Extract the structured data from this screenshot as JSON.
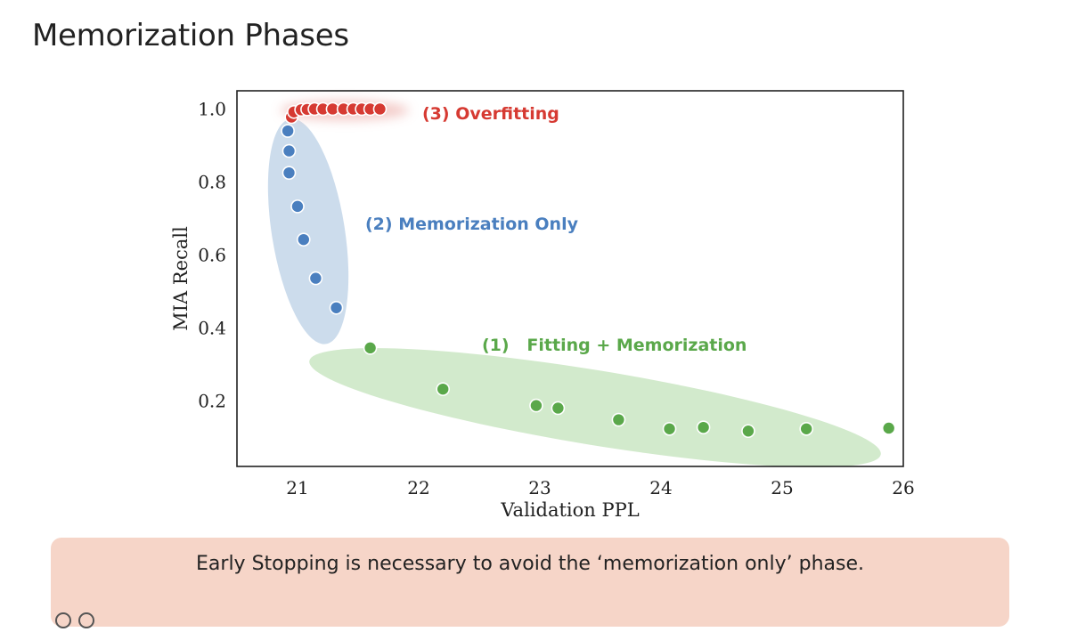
{
  "page": {
    "title": "Memorization Phases"
  },
  "note": {
    "text": "Early Stopping is necessary to avoid the ‘memorization only’ phase."
  },
  "chart_data": {
    "type": "scatter",
    "xlabel": "Validation PPL",
    "ylabel": "MIA Recall",
    "xlim": [
      20.5,
      26
    ],
    "ylim": [
      0.02,
      1.05
    ],
    "xticks": [
      21,
      22,
      23,
      24,
      25,
      26
    ],
    "yticks": [
      0.2,
      0.4,
      0.6,
      0.8,
      1.0
    ],
    "ytick_labels": [
      "0.2",
      "0.4",
      "0.6",
      "0.8",
      "1.0"
    ],
    "grid": false,
    "series": [
      {
        "name": "(1)   Fitting + Memorization",
        "color": "#5aa84a",
        "halo_color": "#cde8c6",
        "points": [
          [
            21.6,
            0.345
          ],
          [
            22.2,
            0.232
          ],
          [
            22.97,
            0.187
          ],
          [
            23.15,
            0.18
          ],
          [
            23.65,
            0.148
          ],
          [
            24.07,
            0.123
          ],
          [
            24.35,
            0.127
          ],
          [
            24.72,
            0.117
          ],
          [
            25.2,
            0.123
          ],
          [
            25.88,
            0.125
          ]
        ]
      },
      {
        "name": "(2) Memorization Only",
        "color": "#4a7fbf",
        "halo_color": "#c7d8ea",
        "points": [
          [
            20.92,
            0.94
          ],
          [
            20.93,
            0.885
          ],
          [
            20.93,
            0.825
          ],
          [
            21.0,
            0.733
          ],
          [
            21.05,
            0.642
          ],
          [
            21.15,
            0.536
          ],
          [
            21.32,
            0.455
          ]
        ]
      },
      {
        "name": "(3) Overfitting",
        "color": "#d63a32",
        "halo_color": "#f2c4c1",
        "points": [
          [
            20.95,
            0.978
          ],
          [
            20.97,
            0.992
          ],
          [
            21.03,
            0.998
          ],
          [
            21.08,
            0.999
          ],
          [
            21.14,
            1.0
          ],
          [
            21.21,
            1.0
          ],
          [
            21.29,
            1.0
          ],
          [
            21.38,
            1.0
          ],
          [
            21.46,
            1.0
          ],
          [
            21.53,
            1.0
          ],
          [
            21.6,
            1.0
          ],
          [
            21.68,
            1.0
          ]
        ]
      }
    ]
  }
}
